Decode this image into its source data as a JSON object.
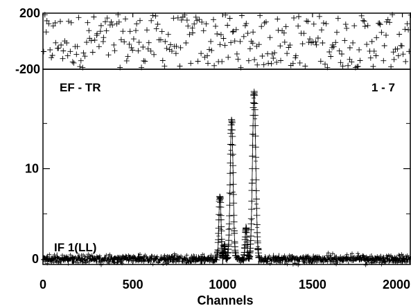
{
  "chart_data": [
    {
      "type": "scatter",
      "panel": "residuals",
      "ylim": [
        -200,
        200
      ],
      "yticks": [
        {
          "value": 200,
          "label": "200"
        },
        {
          "value": -200,
          "label": "-200"
        }
      ],
      "noise_amplitude": 190
    },
    {
      "type": "line",
      "panel": "spectrum",
      "title_left": "EF - TR",
      "title_right": "1 - 7",
      "annotation": "IF 1(LL)",
      "xlabel": "Channels",
      "ylabel": "",
      "xlim": [
        0,
        2048
      ],
      "ylim": [
        -0.6,
        21
      ],
      "xticks": [
        {
          "value": 0,
          "label": "0"
        },
        {
          "value": 500,
          "label": "500"
        },
        {
          "value": 1000,
          "label": "1000"
        },
        {
          "value": 1500,
          "label": "1500"
        },
        {
          "value": 2000,
          "label": "2000"
        }
      ],
      "yticks": [
        {
          "value": 0,
          "label": "0"
        },
        {
          "value": 10,
          "label": "10"
        }
      ],
      "minor_yticks": [
        5,
        15
      ],
      "baseline": 0,
      "baseline_noise": 0.25,
      "peaks": [
        {
          "channel": 985,
          "height": 7.0,
          "width": 6
        },
        {
          "channel": 1010,
          "height": 1.5,
          "width": 4
        },
        {
          "channel": 1050,
          "height": 15.5,
          "width": 8
        },
        {
          "channel": 1130,
          "height": 3.5,
          "width": 5
        },
        {
          "channel": 1175,
          "height": 18.5,
          "width": 9
        }
      ]
    }
  ]
}
